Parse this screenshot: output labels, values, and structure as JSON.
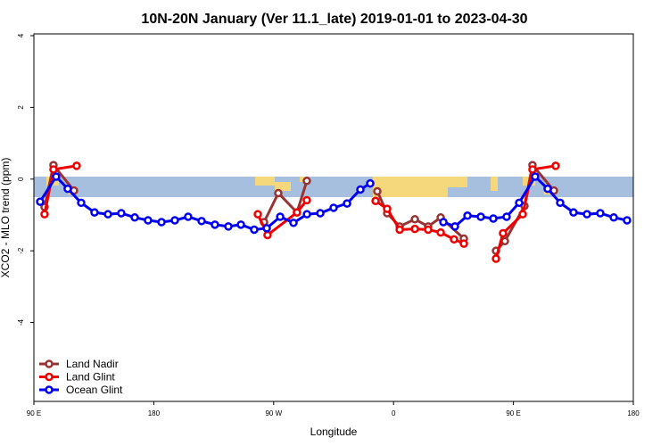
{
  "chart_data": {
    "type": "line",
    "title": "10N-20N January (Ver 11.1_late)   2019-01-01 to 2023-04-30",
    "x_label": "Longitude",
    "y_label": "XCO2 - MLO trend (ppm)",
    "xlim": [
      90,
      540
    ],
    "ylim": [
      -6.2,
      4.05
    ],
    "xticks": [
      {
        "value": 90,
        "label": "90 E"
      },
      {
        "value": 180,
        "label": "180"
      },
      {
        "value": 270,
        "label": "90 W"
      },
      {
        "value": 360,
        "label": "0"
      },
      {
        "value": 450,
        "label": "90 E"
      },
      {
        "value": 540,
        "label": "180"
      }
    ],
    "yticks": [
      -4,
      -2,
      0,
      2,
      4
    ],
    "legend": "bottom-left",
    "series": [
      {
        "name": "Land Nadir",
        "color": "#993333",
        "x": [
          98.0,
          104.7,
          120.1,
          200,
          262.8,
          273.5,
          287.5,
          294.9,
          320,
          347.8,
          355.2,
          364.6,
          376.0,
          386.0,
          395.4,
          412.8,
          425,
          436.9,
          443.6,
          458.3,
          464.3,
          480.4
        ],
        "values": [
          -0.78,
          0.39,
          -0.32,
          null,
          -1.2,
          -0.39,
          -0.93,
          -0.05,
          null,
          -0.34,
          -0.95,
          -1.32,
          -1.12,
          -1.32,
          -1.07,
          -1.66,
          null,
          -2.0,
          -1.73,
          -0.75,
          0.39,
          -0.32
        ]
      },
      {
        "name": "Land Glint",
        "color": "#ee0000",
        "x": [
          98.0,
          104.7,
          122.1,
          200,
          258.1,
          265.4,
          287.5,
          294.9,
          320,
          346.5,
          355.2,
          364.6,
          376.0,
          386.0,
          395.4,
          405.4,
          412.8,
          425,
          436.9,
          442.2,
          457.0,
          464.3,
          481.7
        ],
        "values": [
          -0.98,
          0.27,
          0.37,
          null,
          -0.98,
          -1.56,
          -0.93,
          -0.59,
          null,
          -0.61,
          -0.83,
          -1.41,
          -1.39,
          -1.41,
          -1.49,
          -1.68,
          -1.8,
          null,
          -2.22,
          -1.51,
          -0.98,
          0.27,
          0.37
        ]
      },
      {
        "name": "Ocean Glint",
        "color": "#0000ee",
        "x": [
          94.7,
          106.7,
          115.4,
          125.5,
          135.5,
          145.6,
          155.6,
          165.7,
          175.7,
          185.8,
          195.8,
          205.8,
          215.9,
          225.9,
          236.0,
          245.4,
          255.4,
          264.8,
          274.9,
          284.9,
          295.0,
          305.0,
          315.0,
          325.1,
          335.1,
          342.5,
          370,
          397.4,
          406.1,
          415.5,
          425.5,
          434.9,
          444.9,
          454.3,
          466.3,
          475.7,
          485.1,
          495.1,
          505.2,
          515.2,
          525.3,
          535.3
        ],
        "values": [
          -0.63,
          0.07,
          -0.27,
          -0.66,
          -0.93,
          -0.98,
          -0.95,
          -1.07,
          -1.15,
          -1.2,
          -1.15,
          -1.05,
          -1.17,
          -1.27,
          -1.32,
          -1.27,
          -1.41,
          -1.37,
          -1.05,
          -1.22,
          -0.98,
          -0.95,
          -0.8,
          -0.68,
          -0.29,
          -0.12,
          null,
          -1.2,
          -1.32,
          -1.02,
          -1.05,
          -1.1,
          -1.05,
          -0.66,
          0.07,
          -0.27,
          -0.66,
          -0.93,
          -0.98,
          -0.95,
          -1.07,
          -1.15
        ]
      }
    ]
  }
}
